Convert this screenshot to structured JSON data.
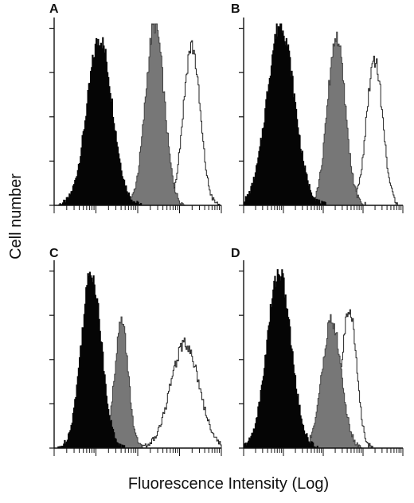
{
  "figure": {
    "ylabel": "Cell number",
    "xlabel": "Fluorescence Intensity (Log)"
  },
  "colors": {
    "filled_black": "#050505",
    "filled_gray": "#777777",
    "outline": "#222222",
    "axis": "#111111"
  },
  "chart_data": [
    {
      "type": "area",
      "panel": "A",
      "x_scale": "log",
      "series": [
        {
          "style": "filled-black",
          "peak": 0.27,
          "width": 0.075,
          "height": 0.92
        },
        {
          "style": "filled-gray",
          "peak": 0.6,
          "width": 0.055,
          "height": 1.0
        },
        {
          "style": "outline",
          "peak": 0.82,
          "width": 0.05,
          "height": 0.88
        }
      ]
    },
    {
      "type": "area",
      "panel": "B",
      "x_scale": "log",
      "series": [
        {
          "style": "filled-black",
          "peak": 0.23,
          "width": 0.085,
          "height": 1.0
        },
        {
          "style": "filled-gray",
          "peak": 0.58,
          "width": 0.055,
          "height": 0.93
        },
        {
          "style": "outline",
          "peak": 0.82,
          "width": 0.05,
          "height": 0.81
        }
      ]
    },
    {
      "type": "area",
      "panel": "C",
      "x_scale": "log",
      "series": [
        {
          "style": "filled-black",
          "peak": 0.22,
          "width": 0.06,
          "height": 0.97
        },
        {
          "style": "filled-gray",
          "peak": 0.4,
          "width": 0.04,
          "height": 0.7
        },
        {
          "style": "outline",
          "peak": 0.78,
          "width": 0.085,
          "height": 0.58
        }
      ]
    },
    {
      "type": "area",
      "panel": "D",
      "x_scale": "log",
      "series": [
        {
          "style": "filled-black",
          "peak": 0.22,
          "width": 0.075,
          "height": 0.97
        },
        {
          "style": "filled-gray",
          "peak": 0.55,
          "width": 0.06,
          "height": 0.7
        },
        {
          "style": "outline",
          "peak": 0.66,
          "width": 0.045,
          "height": 0.78
        }
      ]
    }
  ]
}
